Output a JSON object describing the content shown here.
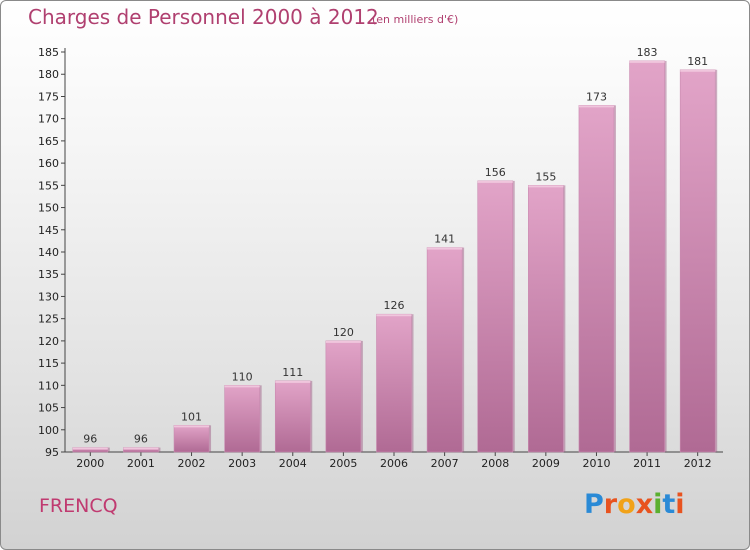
{
  "chart_data": {
    "type": "bar",
    "title": "Charges de Personnel 2000 à 2012",
    "subtitle": "(en milliers d'€)",
    "categories": [
      "2000",
      "2001",
      "2002",
      "2003",
      "2004",
      "2005",
      "2006",
      "2007",
      "2008",
      "2009",
      "2010",
      "2011",
      "2012"
    ],
    "values": [
      96,
      96,
      101,
      110,
      111,
      120,
      126,
      141,
      156,
      155,
      173,
      183,
      181
    ],
    "ylim": [
      95,
      185
    ],
    "yticks": [
      95,
      100,
      105,
      110,
      115,
      120,
      125,
      130,
      135,
      140,
      145,
      150,
      155,
      160,
      165,
      170,
      175,
      180,
      185
    ],
    "data_labels": true,
    "grid": false,
    "bar_color": "#d47aa8"
  },
  "footer": {
    "town": "FRENCQ",
    "logo_text": "Proxiti",
    "logo_colors": [
      "#2a8ad6",
      "#e8531f",
      "#f1a218",
      "#e8531f",
      "#5bb030",
      "#2a8ad6",
      "#e8531f"
    ]
  },
  "colors": {
    "title": "#b04070"
  }
}
